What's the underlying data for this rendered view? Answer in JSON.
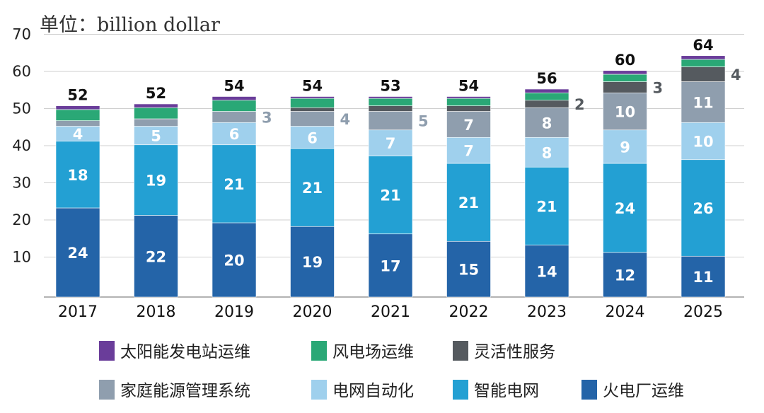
{
  "chart_data": {
    "type": "bar",
    "stacked": true,
    "unit_label": "单位：billion dollar",
    "categories": [
      "2017",
      "2018",
      "2019",
      "2020",
      "2021",
      "2022",
      "2023",
      "2024",
      "2025"
    ],
    "totals": [
      52,
      52,
      54,
      54,
      53,
      54,
      56,
      60,
      64
    ],
    "ylim": [
      0,
      70
    ],
    "yticks": [
      10,
      20,
      30,
      40,
      50,
      60,
      70
    ],
    "legend_position": "bottom",
    "series": [
      {
        "name": "火电厂运维",
        "color": "#2464a8",
        "values": [
          24,
          22,
          20,
          19,
          17,
          15,
          14,
          12,
          11
        ],
        "labels": [
          "24",
          "22",
          "20",
          "19",
          "17",
          "15",
          "14",
          "12",
          "11"
        ],
        "label_style": "inside"
      },
      {
        "name": "智能电网",
        "color": "#23a0d3",
        "values": [
          18,
          19,
          21,
          21,
          21,
          21,
          21,
          24,
          26
        ],
        "labels": [
          "18",
          "19",
          "21",
          "21",
          "21",
          "21",
          "21",
          "24",
          "26"
        ],
        "label_style": "inside"
      },
      {
        "name": "电网自动化",
        "color": "#9fd0ed",
        "values": [
          4,
          5,
          6,
          6,
          7,
          7,
          8,
          9,
          10
        ],
        "labels": [
          "4",
          "5",
          "6",
          "6",
          "7",
          "7",
          "8",
          "9",
          "10"
        ],
        "label_style": "inside"
      },
      {
        "name": "家庭能源管理系统",
        "color": "#8f9eae",
        "values": [
          1.5,
          2,
          3,
          4,
          5,
          7,
          8,
          10,
          11
        ],
        "labels": [
          "",
          "",
          "3",
          "4",
          "5",
          "7",
          "8",
          "10",
          "11"
        ],
        "label_style": "side_then_inside"
      },
      {
        "name": "灵活性服务",
        "color": "#555a5f",
        "values": [
          0,
          0,
          0,
          1,
          1.5,
          1.5,
          2,
          3,
          4
        ],
        "labels": [
          "",
          "",
          "",
          "",
          "",
          "",
          "2",
          "3",
          "4"
        ],
        "label_style": "side"
      },
      {
        "name": "风电场运维",
        "color": "#2aa876",
        "values": [
          3,
          3,
          3,
          2.5,
          2,
          2,
          2,
          2,
          2
        ],
        "labels": [],
        "label_style": "none"
      },
      {
        "name": "太阳能发电站运维",
        "color": "#6a3d9a",
        "values": [
          1,
          1,
          1,
          0.5,
          0.5,
          0.5,
          1,
          1,
          1
        ],
        "labels": [],
        "label_style": "none"
      }
    ]
  },
  "legend": {
    "rows": [
      [
        {
          "label": "太阳能发电站运维",
          "color": "#6a3d9a"
        },
        {
          "label": "风电场运维",
          "color": "#2aa876"
        },
        {
          "label": "灵活性服务",
          "color": "#555a5f"
        }
      ],
      [
        {
          "label": "家庭能源管理系统",
          "color": "#8f9eae"
        },
        {
          "label": "电网自动化",
          "color": "#9fd0ed"
        },
        {
          "label": "智能电网",
          "color": "#23a0d3"
        },
        {
          "label": "火电厂运维",
          "color": "#2464a8"
        }
      ]
    ]
  }
}
